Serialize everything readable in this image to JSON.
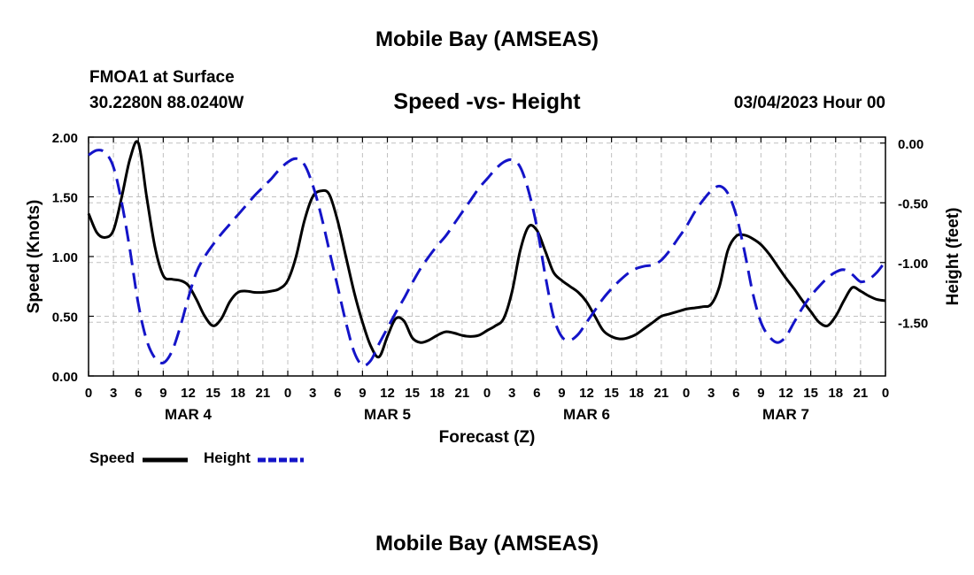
{
  "header": {
    "title": "Mobile Bay (AMSEAS)",
    "station": "FMOA1 at Surface",
    "coords": "30.2280N  88.0240W",
    "subtitle": "Speed -vs- Height",
    "datetime": "03/04/2023 Hour 00"
  },
  "footer": {
    "title": "Mobile Bay (AMSEAS)"
  },
  "legend": {
    "speed": "Speed",
    "height": "Height"
  },
  "colors": {
    "speed": "#000000",
    "height": "#1414c8",
    "grid": "#c0c0c0"
  },
  "chart_data": {
    "type": "line",
    "title": "Speed -vs- Height",
    "xlabel": "Forecast (Z)",
    "ylabel_left": "Speed (Knots)",
    "ylabel_right": "Height (feet)",
    "x_range_hours": [
      0,
      96
    ],
    "x_tick_step_hours": 3,
    "x_tick_labels": [
      "0",
      "3",
      "6",
      "9",
      "12",
      "15",
      "18",
      "21",
      "0",
      "3",
      "6",
      "9",
      "12",
      "15",
      "18",
      "21",
      "0",
      "3",
      "6",
      "9",
      "12",
      "15",
      "18",
      "21",
      "0",
      "3",
      "6",
      "9",
      "12",
      "15",
      "18",
      "21",
      "0"
    ],
    "day_labels": [
      {
        "hour": 12,
        "label": "MAR 4"
      },
      {
        "hour": 36,
        "label": "MAR 5"
      },
      {
        "hour": 60,
        "label": "MAR 6"
      },
      {
        "hour": 84,
        "label": "MAR 7"
      }
    ],
    "ylim_left": [
      0,
      2.0
    ],
    "y_ticks_left": [
      0,
      0.5,
      1.0,
      1.5,
      2.0
    ],
    "y_tick_labels_left": [
      "0.00",
      "0.50",
      "1.00",
      "1.50",
      "2.00"
    ],
    "ylim_right": [
      -1.95,
      0.05
    ],
    "y_ticks_right": [
      0,
      -0.5,
      -1.0,
      -1.5
    ],
    "y_tick_labels_right": [
      "0.00",
      "-0.50",
      "-1.00",
      "-1.50"
    ],
    "series": [
      {
        "name": "Speed",
        "axis": "left",
        "style": "solid",
        "x": [
          0,
          1,
          2,
          3,
          4,
          5,
          6,
          7,
          8,
          9,
          10,
          11,
          12,
          13,
          14,
          15,
          16,
          17,
          18,
          19,
          20,
          21,
          22,
          23,
          24,
          25,
          26,
          27,
          28,
          29,
          30,
          31,
          32,
          33,
          34,
          35,
          36,
          37,
          38,
          39,
          40,
          41,
          42,
          43,
          44,
          45,
          46,
          47,
          48,
          49,
          50,
          51,
          52,
          53,
          54,
          55,
          56,
          57,
          58,
          59,
          60,
          61,
          62,
          63,
          64,
          65,
          66,
          67,
          68,
          69,
          70,
          71,
          72,
          73,
          74,
          75,
          76,
          77,
          78,
          79,
          80,
          81,
          82,
          83,
          84,
          85,
          86,
          87,
          88,
          89,
          90,
          91,
          92,
          93,
          94,
          95,
          96
        ],
        "values": [
          1.36,
          1.2,
          1.16,
          1.22,
          1.5,
          1.82,
          1.95,
          1.5,
          1.08,
          0.84,
          0.81,
          0.8,
          0.76,
          0.64,
          0.5,
          0.42,
          0.48,
          0.62,
          0.7,
          0.71,
          0.7,
          0.7,
          0.71,
          0.73,
          0.8,
          1.0,
          1.3,
          1.5,
          1.55,
          1.52,
          1.3,
          1.0,
          0.7,
          0.45,
          0.25,
          0.16,
          0.33,
          0.48,
          0.46,
          0.32,
          0.28,
          0.3,
          0.34,
          0.37,
          0.36,
          0.34,
          0.33,
          0.34,
          0.38,
          0.42,
          0.48,
          0.7,
          1.05,
          1.25,
          1.22,
          1.05,
          0.87,
          0.8,
          0.75,
          0.7,
          0.62,
          0.5,
          0.38,
          0.33,
          0.31,
          0.32,
          0.35,
          0.4,
          0.45,
          0.5,
          0.52,
          0.54,
          0.56,
          0.57,
          0.58,
          0.6,
          0.75,
          1.05,
          1.17,
          1.18,
          1.15,
          1.1,
          1.02,
          0.92,
          0.82,
          0.73,
          0.63,
          0.54,
          0.45,
          0.42,
          0.5,
          0.63,
          0.74,
          0.71,
          0.67,
          0.64,
          0.63
        ]
      },
      {
        "name": "Height",
        "axis": "right",
        "style": "dashed",
        "x": [
          0,
          1,
          2,
          3,
          4,
          5,
          6,
          7,
          8,
          9,
          10,
          11,
          12,
          13,
          14,
          15,
          16,
          17,
          18,
          19,
          20,
          21,
          22,
          23,
          24,
          25,
          26,
          27,
          28,
          29,
          30,
          31,
          32,
          33,
          34,
          35,
          36,
          37,
          38,
          39,
          40,
          41,
          42,
          43,
          44,
          45,
          46,
          47,
          48,
          49,
          50,
          51,
          52,
          53,
          54,
          55,
          56,
          57,
          58,
          59,
          60,
          61,
          62,
          63,
          64,
          65,
          66,
          67,
          68,
          69,
          70,
          71,
          72,
          73,
          74,
          75,
          76,
          77,
          78,
          79,
          80,
          81,
          82,
          83,
          84,
          85,
          86,
          87,
          88,
          89,
          90,
          91,
          92,
          93,
          94,
          95,
          96
        ],
        "values": [
          -0.1,
          -0.06,
          -0.08,
          -0.2,
          -0.5,
          -0.9,
          -1.35,
          -1.65,
          -1.8,
          -1.84,
          -1.75,
          -1.55,
          -1.3,
          -1.08,
          -0.95,
          -0.85,
          -0.76,
          -0.68,
          -0.6,
          -0.52,
          -0.44,
          -0.37,
          -0.3,
          -0.22,
          -0.16,
          -0.13,
          -0.18,
          -0.35,
          -0.6,
          -0.9,
          -1.2,
          -1.5,
          -1.75,
          -1.86,
          -1.82,
          -1.68,
          -1.55,
          -1.42,
          -1.3,
          -1.17,
          -1.05,
          -0.95,
          -0.86,
          -0.78,
          -0.68,
          -0.58,
          -0.48,
          -0.38,
          -0.3,
          -0.22,
          -0.16,
          -0.14,
          -0.2,
          -0.4,
          -0.7,
          -1.1,
          -1.45,
          -1.62,
          -1.65,
          -1.6,
          -1.5,
          -1.4,
          -1.3,
          -1.22,
          -1.15,
          -1.09,
          -1.05,
          -1.03,
          -1.02,
          -0.98,
          -0.9,
          -0.8,
          -0.7,
          -0.58,
          -0.48,
          -0.4,
          -0.36,
          -0.42,
          -0.6,
          -0.9,
          -1.25,
          -1.5,
          -1.62,
          -1.67,
          -1.62,
          -1.5,
          -1.38,
          -1.28,
          -1.2,
          -1.13,
          -1.08,
          -1.06,
          -1.1,
          -1.16,
          -1.14,
          -1.08,
          -0.99
        ]
      }
    ]
  }
}
